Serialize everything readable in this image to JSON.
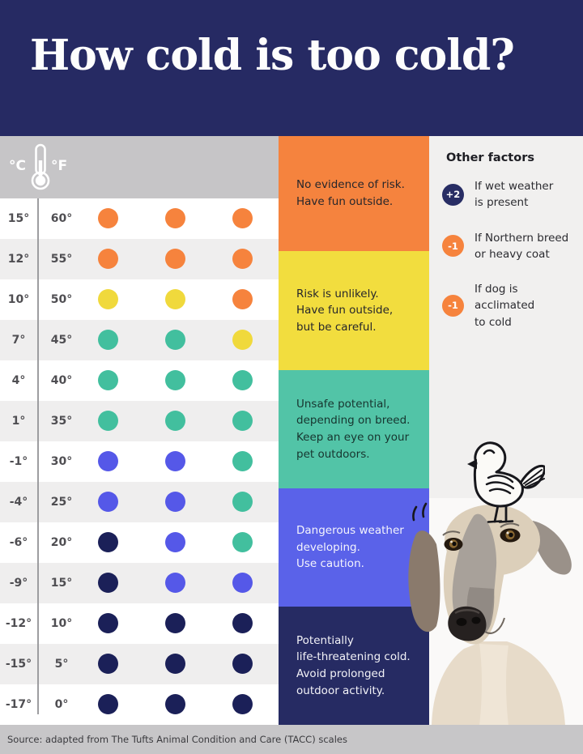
{
  "header": {
    "title": "How cold is too cold?"
  },
  "chart_data": {
    "type": "heatmap",
    "title": "How cold is too cold?",
    "unit_labels": {
      "celsius": "°C",
      "fahrenheit": "°F"
    },
    "size_columns": [
      "small-dog",
      "medium-dog",
      "large-dog"
    ],
    "palette": {
      "orange": "#F6833D",
      "yellow": "#F0D93C",
      "teal": "#42BF9E",
      "blue": "#5558E8",
      "navy": "#1B2058"
    },
    "rows": [
      {
        "c": "15°",
        "f": "60°",
        "dots": [
          "orange",
          "orange",
          "orange"
        ]
      },
      {
        "c": "12°",
        "f": "55°",
        "dots": [
          "orange",
          "orange",
          "orange"
        ]
      },
      {
        "c": "10°",
        "f": "50°",
        "dots": [
          "yellow",
          "yellow",
          "orange"
        ]
      },
      {
        "c": "7°",
        "f": "45°",
        "dots": [
          "teal",
          "teal",
          "yellow"
        ]
      },
      {
        "c": "4°",
        "f": "40°",
        "dots": [
          "teal",
          "teal",
          "teal"
        ]
      },
      {
        "c": "1°",
        "f": "35°",
        "dots": [
          "teal",
          "teal",
          "teal"
        ]
      },
      {
        "c": "-1°",
        "f": "30°",
        "dots": [
          "blue",
          "blue",
          "teal"
        ]
      },
      {
        "c": "-4°",
        "f": "25°",
        "dots": [
          "blue",
          "blue",
          "teal"
        ]
      },
      {
        "c": "-6°",
        "f": "20°",
        "dots": [
          "navy",
          "blue",
          "teal"
        ]
      },
      {
        "c": "-9°",
        "f": "15°",
        "dots": [
          "navy",
          "blue",
          "blue"
        ]
      },
      {
        "c": "-12°",
        "f": "10°",
        "dots": [
          "navy",
          "navy",
          "navy"
        ]
      },
      {
        "c": "-15°",
        "f": "5°",
        "dots": [
          "navy",
          "navy",
          "navy"
        ]
      },
      {
        "c": "-17°",
        "f": "0°",
        "dots": [
          "navy",
          "navy",
          "navy"
        ]
      }
    ],
    "risk_legend": [
      {
        "level": "no-risk",
        "color": "#F5833E",
        "text_color": "#26262b",
        "label": "No evidence of risk.\nHave fun outside."
      },
      {
        "level": "unlikely",
        "color": "#F2DD3E",
        "text_color": "#26262b",
        "label": "Risk is unlikely.\nHave fun outside,\nbut be careful."
      },
      {
        "level": "unsafe",
        "color": "#52C4A7",
        "text_color": "#17352f",
        "label": "Unsafe potential,\ndepending on breed.\nKeep an eye on your\npet outdoors."
      },
      {
        "level": "dangerous",
        "color": "#5A62E9",
        "text_color": "#f4f4fc",
        "label": "Dangerous weather\ndeveloping.\nUse caution."
      },
      {
        "level": "life-threatening",
        "color": "#262B63",
        "text_color": "#f2f2f7",
        "label": "Potentially\nlife-threatening cold.\nAvoid prolonged\noutdoor activity."
      }
    ],
    "legend_position": "right"
  },
  "other_factors": {
    "heading": "Other factors",
    "items": [
      {
        "badge": "+2",
        "badge_color": "#282d64",
        "text": "If wet weather\nis present"
      },
      {
        "badge": "-1",
        "badge_color": "#F6833D",
        "text": "If Northern breed\nor heavy coat"
      },
      {
        "badge": "-1",
        "badge_color": "#F6833D",
        "text": "If dog is\nacclimated\nto cold"
      }
    ]
  },
  "icons": {
    "thermometer": "thermometer-icon",
    "small_dog": "small-dog-icon",
    "medium_dog": "medium-dog-icon",
    "large_dog": "large-dog-icon",
    "bird": "bird-doodle-icon",
    "dog_photo": "dog-photo"
  },
  "footer": {
    "source": "Source: adapted from The Tufts Animal Condition and Care (TACC) scales"
  }
}
